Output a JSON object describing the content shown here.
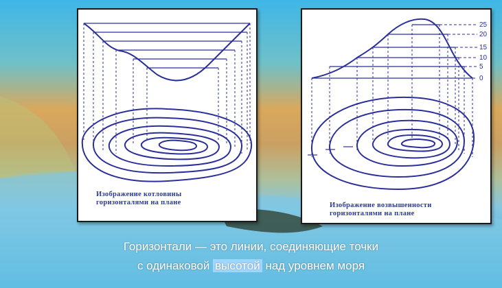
{
  "caption_left_line1": "Изображение котловины",
  "caption_left_line2": "горизонталями на плане",
  "caption_right_line1": "Изображение возвышенности",
  "caption_right_line2": "горизонталями на плане",
  "height_labels": [
    "25",
    "20",
    "15",
    "10",
    "5",
    "0"
  ],
  "bottom_line1": "Горизонтали — это линии, соединяющие точки",
  "bottom_line2_before": "с одинаковой",
  "bottom_line2_highlight": "высотой",
  "bottom_line2_after": "над уровнем моря",
  "colors": {
    "sky": "#47b8e6",
    "land": "#d7a95a",
    "sea": "#8fcde8",
    "contour": "#2b2f9a",
    "highlight_bg": "#9fd6ff"
  }
}
